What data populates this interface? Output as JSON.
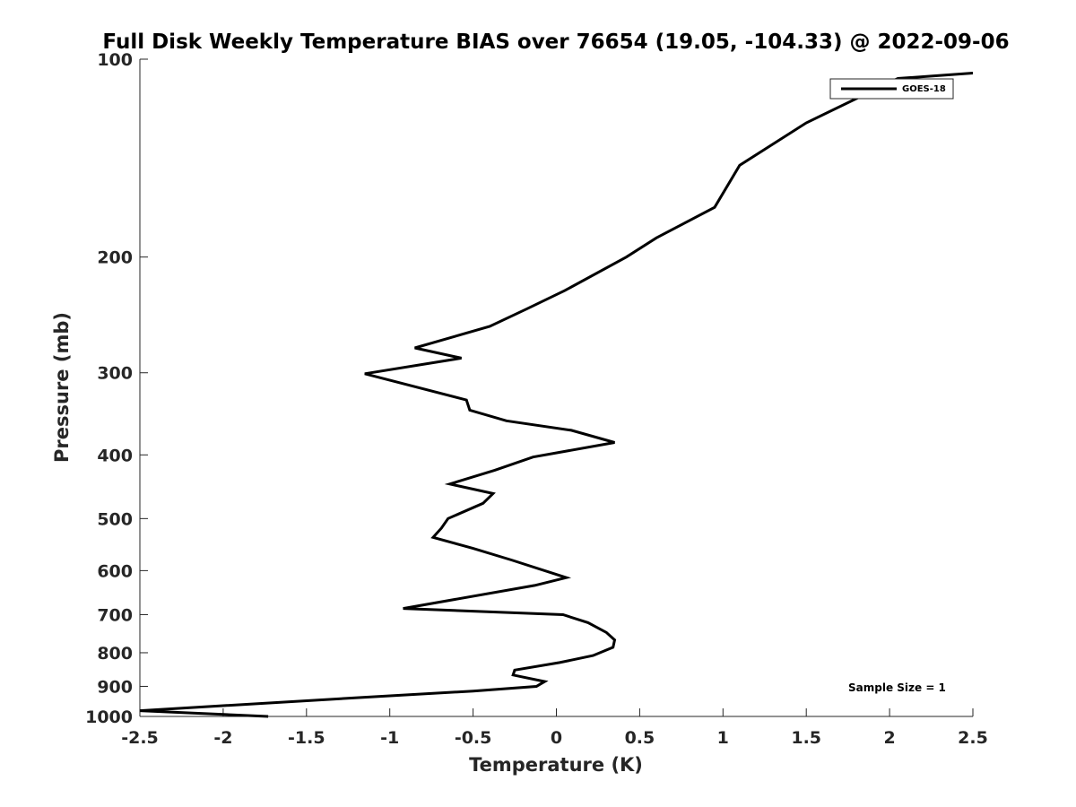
{
  "chart_data": {
    "type": "line",
    "title": "Full Disk Weekly Temperature BIAS over 76654 (19.05, -104.33) @ 2022-09-06",
    "xlabel": "Temperature (K)",
    "ylabel": "Pressure (mb)",
    "xlim": [
      -2.5,
      2.5
    ],
    "ylim": [
      1000,
      100
    ],
    "y_scale": "log",
    "y_reversed": true,
    "x_ticks": [
      "-2.5",
      "-2",
      "-1.5",
      "-1",
      "-0.5",
      "0",
      "0.5",
      "1",
      "1.5",
      "2",
      "2.5"
    ],
    "x_tick_values": [
      -2.5,
      -2,
      -1.5,
      -1,
      -0.5,
      0,
      0.5,
      1,
      1.5,
      2,
      2.5
    ],
    "y_ticks": [
      "100",
      "200",
      "300",
      "400",
      "500",
      "600",
      "700",
      "800",
      "900",
      "1000"
    ],
    "y_tick_values": [
      100,
      200,
      300,
      400,
      500,
      600,
      700,
      800,
      900,
      1000
    ],
    "grid": false,
    "legend_position": "top-right",
    "series": [
      {
        "name": "GOES-18",
        "color": "#000000",
        "points": [
          {
            "t": 2.5,
            "p": 105
          },
          {
            "t": 2.05,
            "p": 107
          },
          {
            "t": 1.5,
            "p": 125
          },
          {
            "t": 1.1,
            "p": 145
          },
          {
            "t": 0.95,
            "p": 168
          },
          {
            "t": 0.6,
            "p": 187
          },
          {
            "t": 0.42,
            "p": 200
          },
          {
            "t": 0.05,
            "p": 225
          },
          {
            "t": -0.18,
            "p": 240
          },
          {
            "t": -0.4,
            "p": 255
          },
          {
            "t": -0.85,
            "p": 275
          },
          {
            "t": -0.57,
            "p": 285
          },
          {
            "t": -1.15,
            "p": 301
          },
          {
            "t": -0.54,
            "p": 330
          },
          {
            "t": -0.52,
            "p": 342
          },
          {
            "t": -0.3,
            "p": 355
          },
          {
            "t": 0.09,
            "p": 367
          },
          {
            "t": 0.35,
            "p": 383
          },
          {
            "t": -0.14,
            "p": 403
          },
          {
            "t": -0.37,
            "p": 422
          },
          {
            "t": -0.64,
            "p": 443
          },
          {
            "t": -0.38,
            "p": 458
          },
          {
            "t": -0.44,
            "p": 474
          },
          {
            "t": -0.65,
            "p": 500
          },
          {
            "t": -0.69,
            "p": 517
          },
          {
            "t": -0.74,
            "p": 534
          },
          {
            "t": -0.5,
            "p": 555
          },
          {
            "t": -0.27,
            "p": 578
          },
          {
            "t": 0.06,
            "p": 615
          },
          {
            "t": -0.13,
            "p": 632
          },
          {
            "t": -0.92,
            "p": 685
          },
          {
            "t": 0.04,
            "p": 700
          },
          {
            "t": 0.19,
            "p": 720
          },
          {
            "t": 0.3,
            "p": 745
          },
          {
            "t": 0.35,
            "p": 765
          },
          {
            "t": 0.34,
            "p": 785
          },
          {
            "t": 0.22,
            "p": 808
          },
          {
            "t": 0.02,
            "p": 828
          },
          {
            "t": -0.25,
            "p": 850
          },
          {
            "t": -0.26,
            "p": 865
          },
          {
            "t": -0.07,
            "p": 885
          },
          {
            "t": -0.12,
            "p": 900
          },
          {
            "t": -0.5,
            "p": 915
          },
          {
            "t": -1.15,
            "p": 935
          },
          {
            "t": -2.5,
            "p": 980
          },
          {
            "t": -1.73,
            "p": 1000
          }
        ]
      }
    ],
    "annotations": [
      "Sample Size = 1"
    ]
  }
}
